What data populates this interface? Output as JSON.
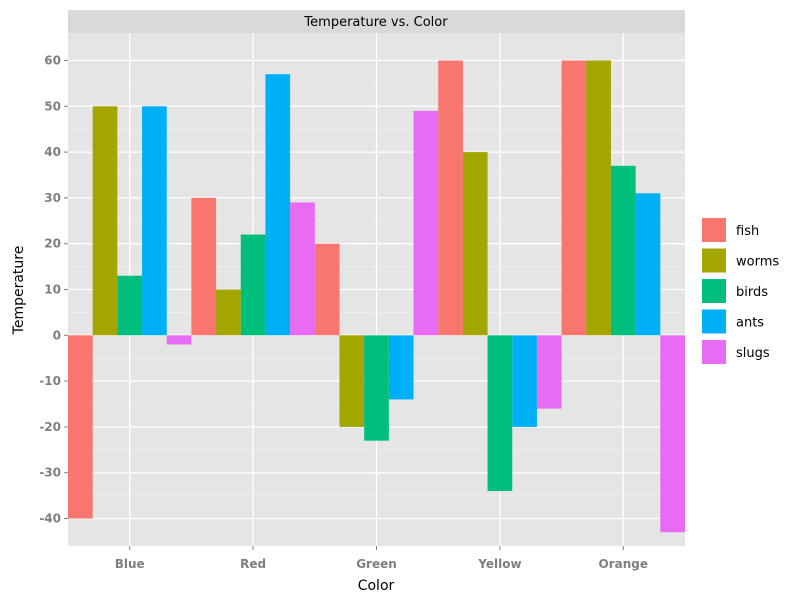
{
  "chart_data": {
    "type": "bar",
    "title": "Temperature vs. Color",
    "xlabel": "Color",
    "ylabel": "Temperature",
    "categories": [
      "Blue",
      "Red",
      "Green",
      "Yellow",
      "Orange"
    ],
    "ylim": [
      -46,
      66
    ],
    "yticks": [
      -40,
      -30,
      -20,
      -10,
      0,
      10,
      20,
      30,
      40,
      50,
      60
    ],
    "grid": true,
    "legend_position": "right",
    "series": [
      {
        "name": "fish",
        "color": "#F8766D",
        "values": [
          -40,
          30,
          20,
          60,
          60
        ]
      },
      {
        "name": "worms",
        "color": "#A3A500",
        "values": [
          50,
          10,
          -20,
          40,
          60
        ]
      },
      {
        "name": "birds",
        "color": "#00BF7D",
        "values": [
          13,
          22,
          -23,
          -34,
          37
        ]
      },
      {
        "name": "ants",
        "color": "#00B0F6",
        "values": [
          50,
          57,
          -14,
          -20,
          31
        ]
      },
      {
        "name": "slugs",
        "color": "#E76BF3",
        "values": [
          -2,
          29,
          49,
          -16,
          -43
        ]
      }
    ]
  }
}
